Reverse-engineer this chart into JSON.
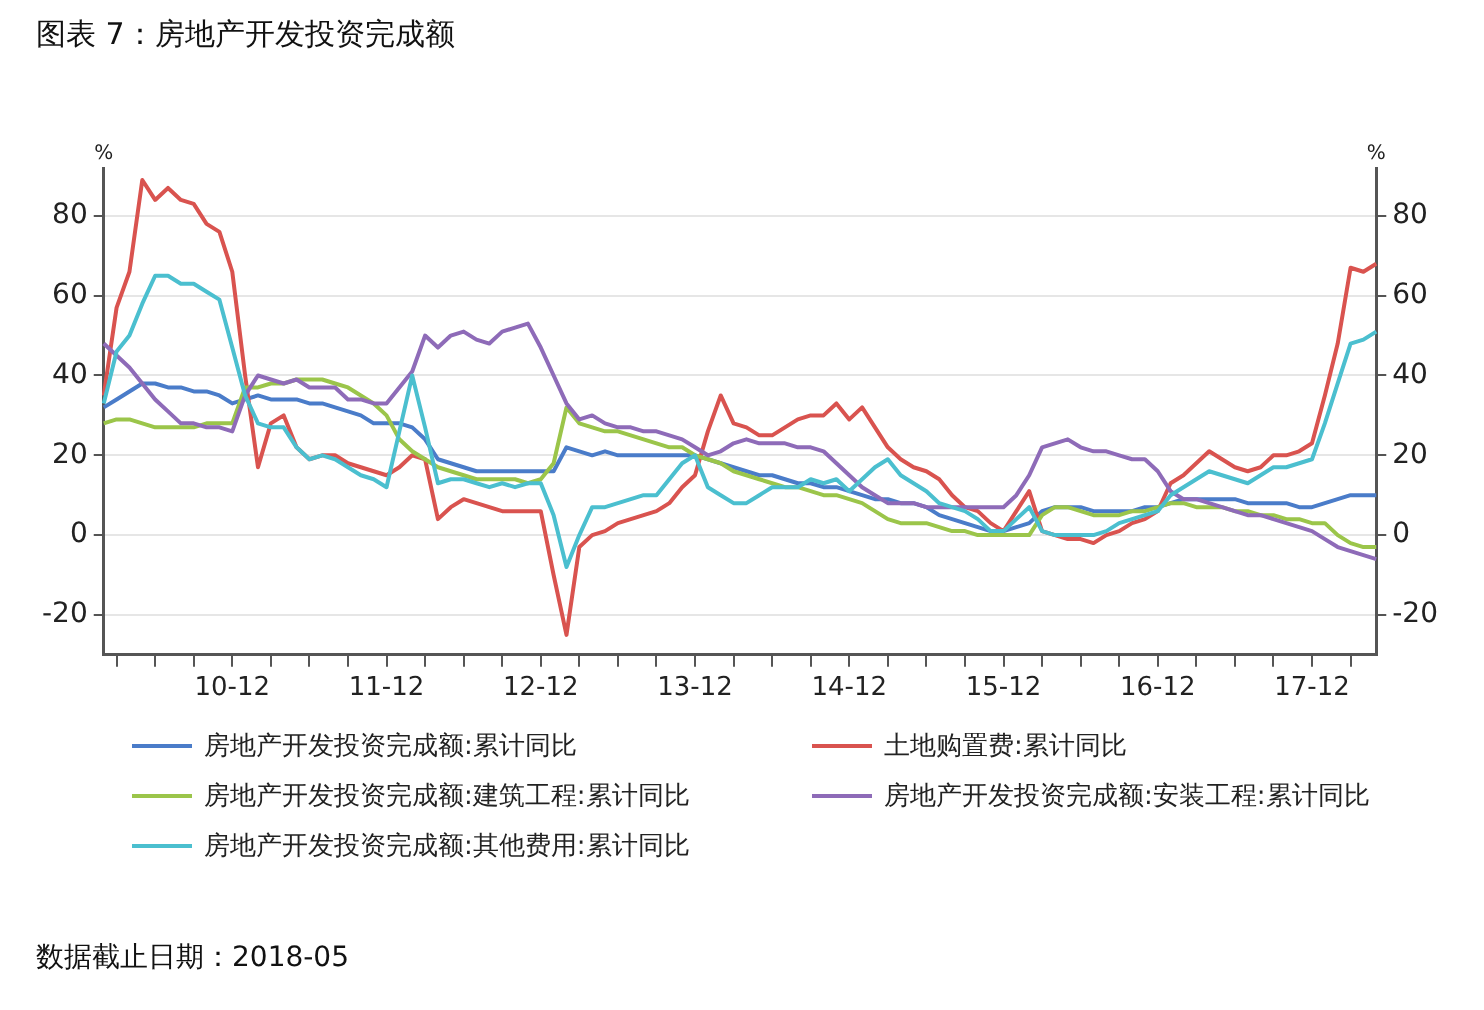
{
  "chart_data": {
    "type": "line",
    "title": "图表 7：房地产开发投资完成额",
    "ylabel": "%",
    "y2label": "%",
    "categories": [
      null,
      null,
      null,
      null,
      null,
      null,
      null,
      null,
      null,
      null,
      "10-12",
      null,
      null,
      null,
      null,
      null,
      null,
      null,
      null,
      null,
      null,
      null,
      "11-12",
      null,
      null,
      null,
      null,
      null,
      null,
      null,
      null,
      null,
      null,
      null,
      "12-12",
      null,
      null,
      null,
      null,
      null,
      null,
      null,
      null,
      null,
      null,
      null,
      "13-12",
      null,
      null,
      null,
      null,
      null,
      null,
      null,
      null,
      null,
      null,
      null,
      "14-12",
      null,
      null,
      null,
      null,
      null,
      null,
      null,
      null,
      null,
      null,
      null,
      "15-12",
      null,
      null,
      null,
      null,
      null,
      null,
      null,
      null,
      null,
      null,
      null,
      "16-12",
      null,
      null,
      null,
      null,
      null,
      null,
      null,
      null,
      null,
      null,
      null,
      "17-12",
      null,
      null,
      null,
      null,
      null
    ],
    "series": [
      {
        "name": "房地产开发投资完成额:累计同比",
        "color": "#4a7cc9",
        "values": [
          32,
          34,
          36,
          38,
          38,
          37,
          37,
          36,
          36,
          35,
          33,
          34,
          35,
          34,
          34,
          34,
          33,
          33,
          32,
          31,
          30,
          28,
          28,
          28,
          27,
          24,
          19,
          18,
          17,
          16,
          16,
          16,
          16,
          16,
          16,
          16,
          22,
          21,
          20,
          21,
          20,
          20,
          20,
          20,
          20,
          20,
          20,
          19,
          18,
          17,
          16,
          15,
          15,
          14,
          13,
          13,
          12,
          12,
          11,
          10,
          9,
          9,
          8,
          8,
          7,
          5,
          4,
          3,
          2,
          1,
          1,
          2,
          3,
          6,
          7,
          7,
          7,
          6,
          6,
          6,
          6,
          7,
          7,
          8,
          9,
          9,
          9,
          9,
          9,
          8,
          8,
          8,
          8,
          7,
          7,
          8,
          9,
          10,
          10,
          10
        ]
      },
      {
        "name": "土地购置费:累计同比",
        "color": "#d9534f",
        "values": [
          35,
          57,
          66,
          89,
          84,
          87,
          84,
          83,
          78,
          76,
          66,
          40,
          17,
          28,
          30,
          22,
          19,
          20,
          20,
          18,
          17,
          16,
          15,
          17,
          20,
          19,
          4,
          7,
          9,
          8,
          7,
          6,
          6,
          6,
          6,
          -10,
          -25,
          -3,
          0,
          1,
          3,
          4,
          5,
          6,
          8,
          12,
          15,
          26,
          35,
          28,
          27,
          25,
          25,
          27,
          29,
          30,
          30,
          33,
          29,
          32,
          27,
          22,
          19,
          17,
          16,
          14,
          10,
          7,
          6,
          3,
          1,
          6,
          11,
          1,
          0,
          -1,
          -1,
          -2,
          0,
          1,
          3,
          4,
          6,
          13,
          15,
          18,
          21,
          19,
          17,
          16,
          17,
          20,
          20,
          21,
          23,
          35,
          48,
          67,
          66,
          68
        ]
      },
      {
        "name": "房地产开发投资完成额:建筑工程:累计同比",
        "color": "#9bc54a",
        "values": [
          28,
          29,
          29,
          28,
          27,
          27,
          27,
          27,
          28,
          28,
          28,
          37,
          37,
          38,
          38,
          39,
          39,
          39,
          38,
          37,
          35,
          33,
          30,
          24,
          21,
          19,
          17,
          16,
          15,
          14,
          14,
          14,
          14,
          13,
          14,
          18,
          32,
          28,
          27,
          26,
          26,
          25,
          24,
          23,
          22,
          22,
          20,
          19,
          18,
          16,
          15,
          14,
          13,
          12,
          12,
          11,
          10,
          10,
          9,
          8,
          6,
          4,
          3,
          3,
          3,
          2,
          1,
          1,
          0,
          0,
          0,
          0,
          0,
          5,
          7,
          7,
          6,
          5,
          5,
          5,
          6,
          6,
          7,
          8,
          8,
          7,
          7,
          7,
          6,
          6,
          5,
          5,
          4,
          4,
          3,
          3,
          0,
          -2,
          -3,
          -3
        ]
      },
      {
        "name": "房地产开发投资完成额:安装工程:累计同比",
        "color": "#8e6bb8",
        "values": [
          48,
          45,
          42,
          38,
          34,
          31,
          28,
          28,
          27,
          27,
          26,
          35,
          40,
          39,
          38,
          39,
          37,
          37,
          37,
          34,
          34,
          33,
          33,
          37,
          41,
          50,
          47,
          50,
          51,
          49,
          48,
          51,
          52,
          53,
          47,
          40,
          33,
          29,
          30,
          28,
          27,
          27,
          26,
          26,
          25,
          24,
          22,
          20,
          21,
          23,
          24,
          23,
          23,
          23,
          22,
          22,
          21,
          18,
          15,
          12,
          10,
          8,
          8,
          8,
          7,
          7,
          7,
          7,
          7,
          7,
          7,
          10,
          15,
          22,
          23,
          24,
          22,
          21,
          21,
          20,
          19,
          19,
          16,
          11,
          9,
          9,
          8,
          7,
          6,
          5,
          5,
          4,
          3,
          2,
          1,
          -1,
          -3,
          -4,
          -5,
          -6
        ]
      },
      {
        "name": "房地产开发投资完成额:其他费用:累计同比",
        "color": "#4bbfcf",
        "values": [
          33,
          46,
          50,
          58,
          65,
          65,
          63,
          63,
          61,
          59,
          47,
          35,
          28,
          27,
          27,
          22,
          19,
          20,
          19,
          17,
          15,
          14,
          12,
          26,
          40,
          27,
          13,
          14,
          14,
          13,
          12,
          13,
          12,
          13,
          13,
          5,
          -8,
          0,
          7,
          7,
          8,
          9,
          10,
          10,
          14,
          18,
          20,
          12,
          10,
          8,
          8,
          10,
          12,
          12,
          12,
          14,
          13,
          14,
          11,
          14,
          17,
          19,
          15,
          13,
          11,
          8,
          7,
          6,
          4,
          1,
          1,
          4,
          7,
          1,
          0,
          0,
          0,
          0,
          1,
          3,
          4,
          5,
          6,
          10,
          12,
          14,
          16,
          15,
          14,
          13,
          15,
          17,
          17,
          18,
          19,
          28,
          38,
          48,
          49,
          51
        ]
      }
    ],
    "ylim": [
      -30,
      92
    ],
    "yticks": [
      -20,
      0,
      20,
      40,
      60,
      80
    ],
    "y2lim": [
      -30,
      92
    ],
    "y2ticks": [
      -20,
      0,
      20,
      40,
      60,
      80
    ],
    "grid": "y",
    "legend": "bottom",
    "marker": "none",
    "line_style": "solid",
    "annotations": [
      "数据截止日期：2018-05"
    ]
  }
}
